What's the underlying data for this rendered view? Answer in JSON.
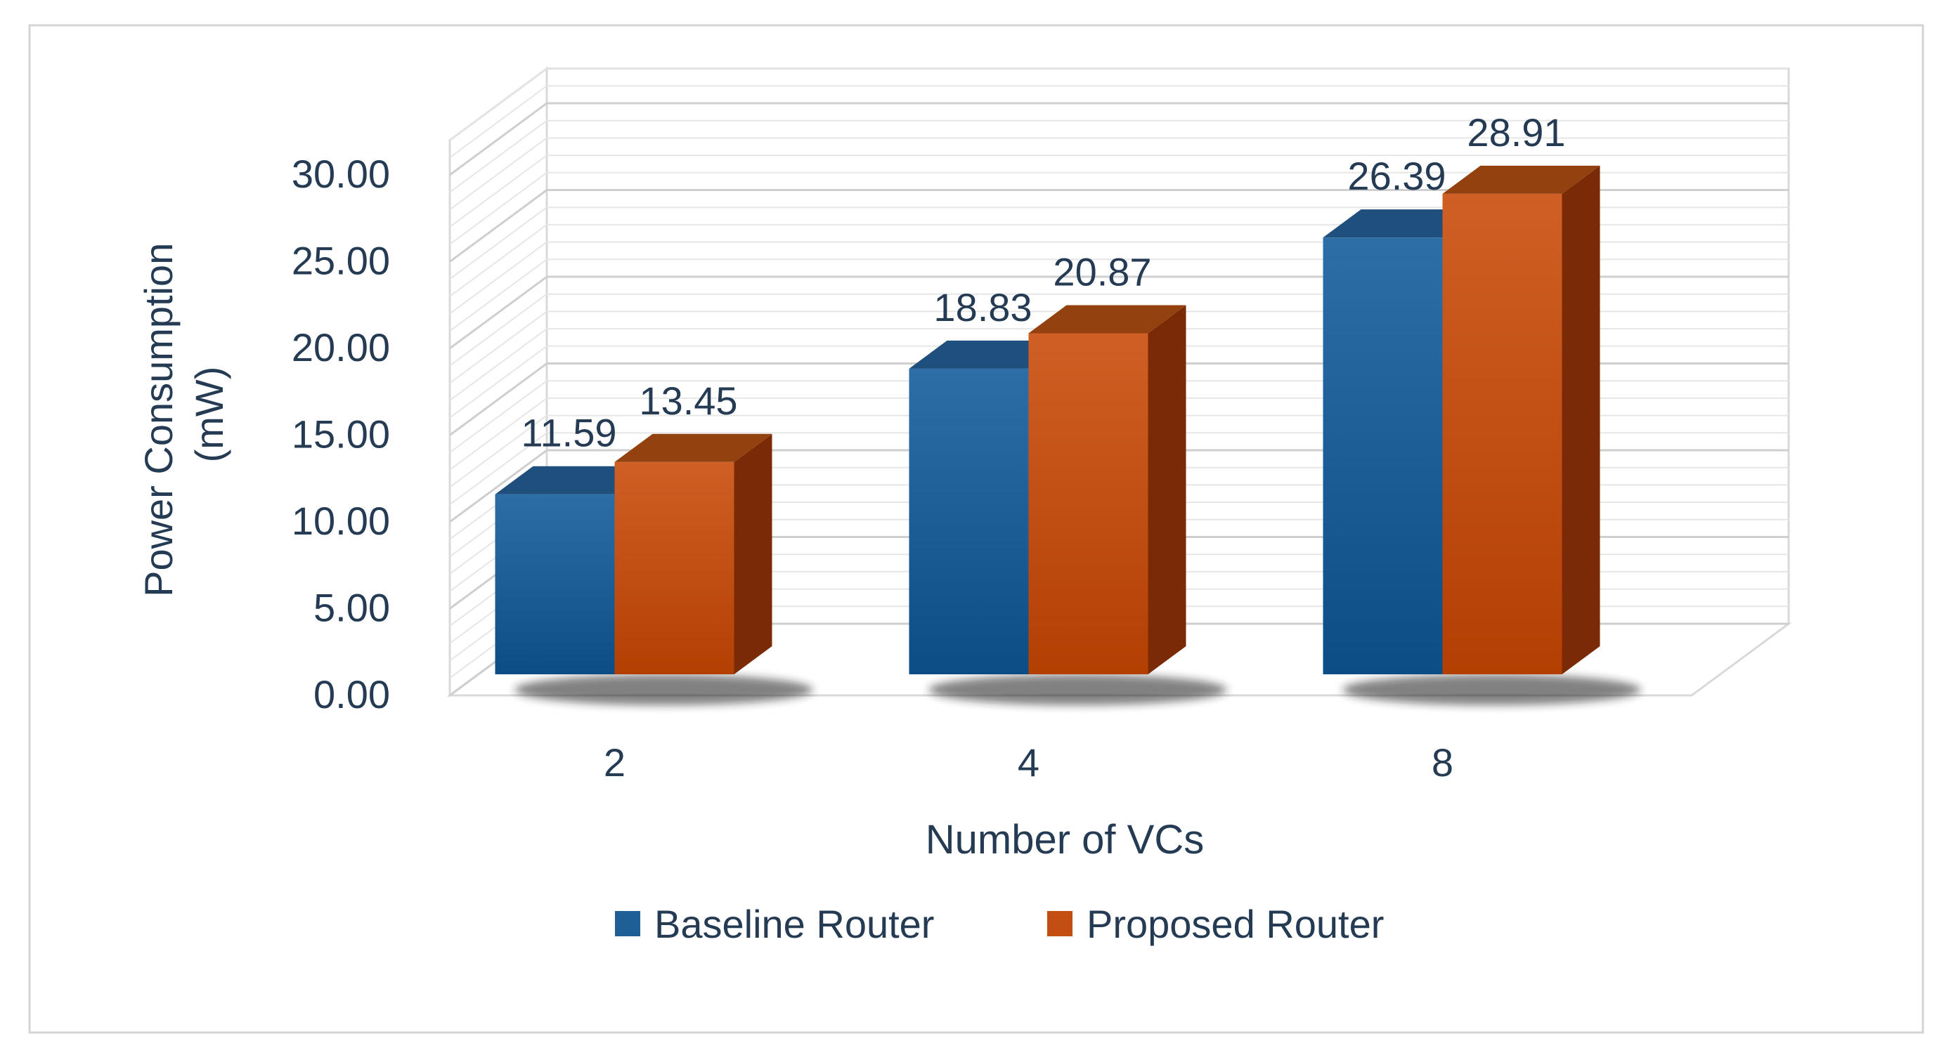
{
  "chart_data": {
    "type": "bar",
    "title": "",
    "xlabel": "Number of VCs",
    "ylabel_lines": [
      "Power Consumption",
      "(mW)"
    ],
    "categories": [
      "2",
      "4",
      "8"
    ],
    "series": [
      {
        "name": "Baseline Router",
        "values": [
          11.59,
          18.83,
          26.39
        ],
        "color": "#1f5f96"
      },
      {
        "name": "Proposed Router",
        "values": [
          13.45,
          20.87,
          28.91
        ],
        "color": "#c24e12"
      }
    ],
    "data_labels": [
      [
        "11.59",
        "18.83",
        "26.39"
      ],
      [
        "13.45",
        "20.87",
        "28.91"
      ]
    ],
    "y_ticks": [
      "0.00",
      "5.00",
      "10.00",
      "15.00",
      "20.00",
      "25.00",
      "30.00"
    ],
    "ylim": [
      0,
      30
    ],
    "grid": true,
    "style": "3d-clustered-column",
    "legend_position": "bottom"
  }
}
